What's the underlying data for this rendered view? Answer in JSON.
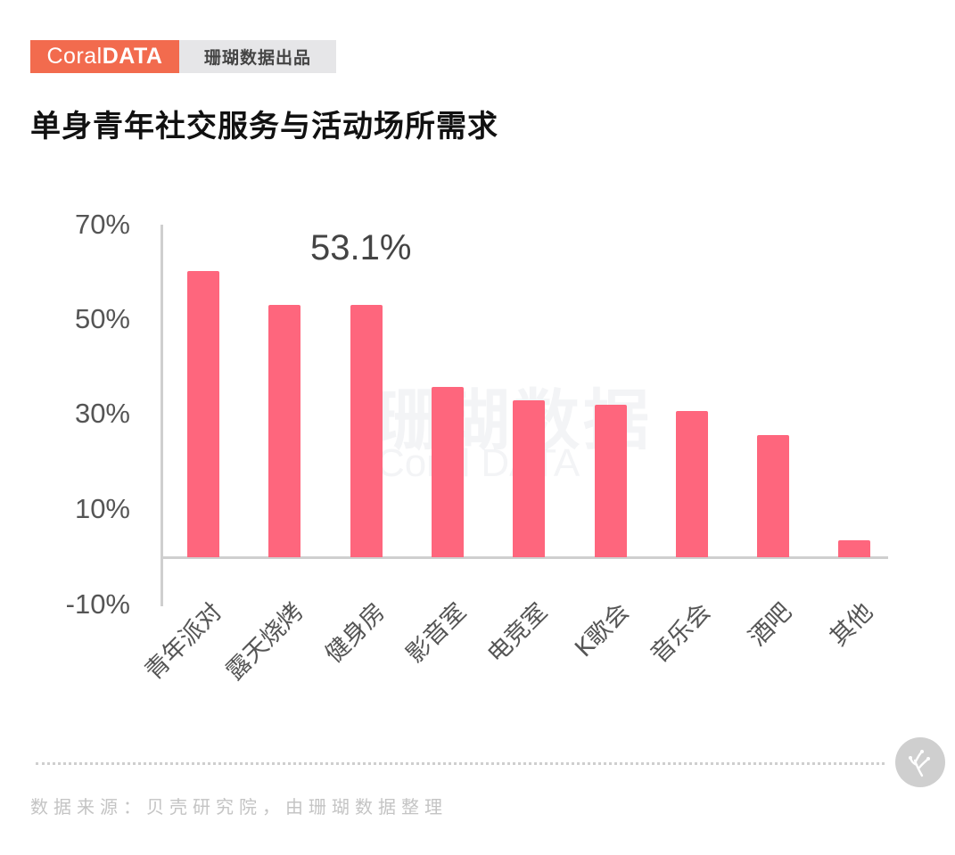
{
  "header": {
    "brand_left_thin": "Coral",
    "brand_left_bold": "DATA",
    "brand_right": "珊瑚数据出品",
    "title": "单身青年社交服务与活动场所需求"
  },
  "watermark": {
    "cn": "珊瑚数据",
    "en": "Coral DATA"
  },
  "footer": {
    "source": "数据来源：贝壳研究院，由珊瑚数据整理"
  },
  "colors": {
    "bar": "#fe667d",
    "brand": "#f26b4e",
    "axis": "#cfcfcf"
  },
  "chart_data": {
    "type": "bar",
    "title": "单身青年社交服务与活动场所需求",
    "categories": [
      "青年派对",
      "露天烧烤",
      "健身房",
      "影音室",
      "电竞室",
      "K歌会",
      "音乐会",
      "酒吧",
      "其他"
    ],
    "values": [
      60.3,
      53.1,
      53.1,
      35.8,
      33.0,
      32.1,
      30.8,
      25.7,
      3.6
    ],
    "unit": "%",
    "xlabel": "",
    "ylabel": "",
    "ylim": [
      -10,
      70
    ],
    "yticks": [
      "70%",
      "50%",
      "30%",
      "10%",
      "-10%"
    ],
    "annotations": [
      {
        "text": "53.1%",
        "target": "健身房"
      }
    ],
    "grid": false,
    "legend": null
  }
}
